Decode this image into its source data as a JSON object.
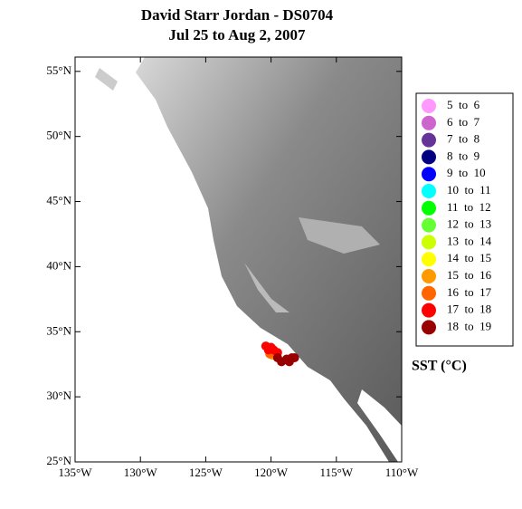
{
  "chart_data": {
    "type": "scatter",
    "title": "David Starr Jordan - DS0704",
    "subtitle": "Jul 25 to Aug 2, 2007",
    "legend_title": "SST (°C)",
    "legend": "right",
    "xlim": [
      -135,
      -110
    ],
    "ylim": [
      25,
      56.1
    ],
    "xticks": [
      {
        "value": -135,
        "label": "135°W"
      },
      {
        "value": -130,
        "label": "130°W"
      },
      {
        "value": -125,
        "label": "125°W"
      },
      {
        "value": -120,
        "label": "120°W"
      },
      {
        "value": -115,
        "label": "115°W"
      },
      {
        "value": -110,
        "label": "110°W"
      }
    ],
    "yticks": [
      {
        "value": 25,
        "label": "25°N"
      },
      {
        "value": 30,
        "label": "30°N"
      },
      {
        "value": 35,
        "label": "35°N"
      },
      {
        "value": 40,
        "label": "40°N"
      },
      {
        "value": 45,
        "label": "45°N"
      },
      {
        "value": 50,
        "label": "50°N"
      },
      {
        "value": 55,
        "label": "55°N"
      }
    ],
    "series": [
      {
        "name": "5  to  6",
        "color": "#ff99ff",
        "x": [],
        "values": []
      },
      {
        "name": "6  to  7",
        "color": "#cc66cc",
        "x": [],
        "values": []
      },
      {
        "name": "7  to  8",
        "color": "#663399",
        "x": [],
        "values": []
      },
      {
        "name": "8  to  9",
        "color": "#000080",
        "x": [],
        "values": []
      },
      {
        "name": "9  to  10",
        "color": "#0000ff",
        "x": [],
        "values": []
      },
      {
        "name": "10  to  11",
        "color": "#00ffff",
        "x": [],
        "values": []
      },
      {
        "name": "11  to  12",
        "color": "#00ff00",
        "x": [],
        "values": []
      },
      {
        "name": "12  to  13",
        "color": "#66ff33",
        "x": [],
        "values": []
      },
      {
        "name": "13  to  14",
        "color": "#ccff00",
        "x": [],
        "values": []
      },
      {
        "name": "14  to  15",
        "color": "#ffff00",
        "x": [
          -120.0
        ],
        "values": [
          33.4
        ]
      },
      {
        "name": "15  to  16",
        "color": "#ff9900",
        "x": [
          -119.9
        ],
        "values": [
          33.2
        ]
      },
      {
        "name": "16  to  17",
        "color": "#ff6600",
        "x": [
          -120.1
        ],
        "values": [
          33.3
        ]
      },
      {
        "name": "17  to  18",
        "color": "#ff0000",
        "x": [
          -120.4,
          -120.0,
          -119.8,
          -120.2,
          -119.5
        ],
        "values": [
          33.9,
          33.8,
          33.6,
          33.6,
          33.4
        ]
      },
      {
        "name": "18  to  19",
        "color": "#990000",
        "x": [
          -118.8,
          -118.4,
          -119.2,
          -118.6,
          -119.5,
          -118.2
        ],
        "values": [
          32.9,
          33.0,
          32.7,
          32.7,
          33.0,
          33.0
        ]
      }
    ]
  }
}
